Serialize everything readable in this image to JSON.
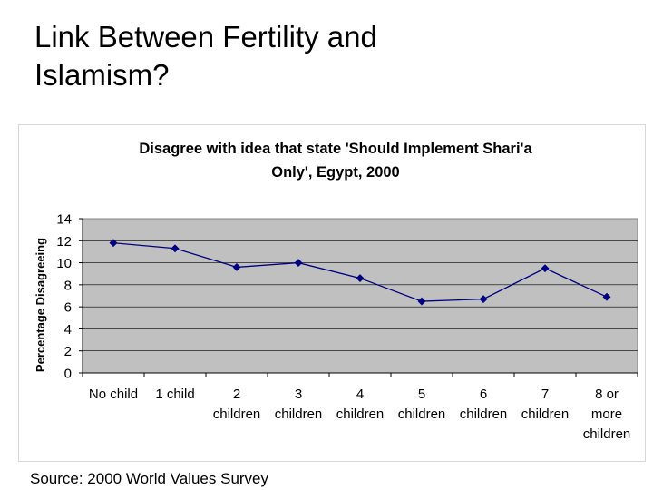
{
  "slide": {
    "title_line1": "Link Between Fertility and",
    "title_line2": "Islamism?",
    "source": "Source: 2000 World Values Survey"
  },
  "chart_data": {
    "type": "line",
    "title_lines": [
      "Disagree with idea that state 'Should Implement Shari'a",
      "Only', Egypt, 2000"
    ],
    "xlabel": "",
    "ylabel": "Percentage Disagreeing",
    "ylim": [
      0,
      14
    ],
    "yticks": [
      0,
      2,
      4,
      6,
      8,
      10,
      12,
      14
    ],
    "grid": true,
    "legend": "none",
    "categories": [
      [
        "No child"
      ],
      [
        "1 child"
      ],
      [
        "2",
        "children"
      ],
      [
        "3",
        "children"
      ],
      [
        "4",
        "children"
      ],
      [
        "5",
        "children"
      ],
      [
        "6",
        "children"
      ],
      [
        "7",
        "children"
      ],
      [
        "8 or",
        "more",
        "children"
      ]
    ],
    "series": [
      {
        "values": [
          11.8,
          11.3,
          9.6,
          10.0,
          8.6,
          6.5,
          6.7,
          9.5,
          6.9
        ],
        "color": "#000080"
      }
    ],
    "plot_background": "#c0c0c0"
  }
}
